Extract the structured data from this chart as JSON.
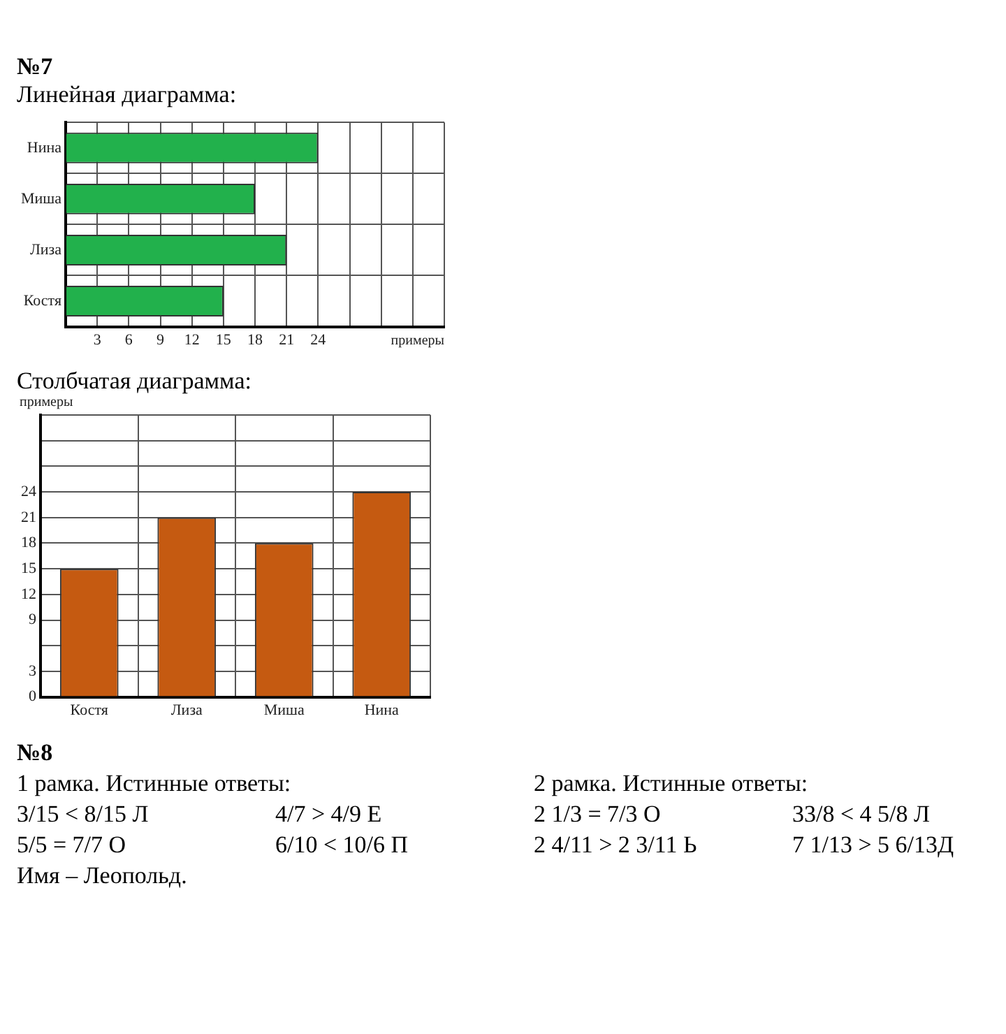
{
  "chart_data": [
    {
      "type": "bar",
      "title": "Линейная диаграмма:",
      "annotations": [
        "№7"
      ],
      "orientation": "horizontal",
      "categories": [
        "Нина",
        "Миша",
        "Лиза",
        "Костя"
      ],
      "values": [
        24,
        18,
        21,
        15
      ],
      "color": "#22b14c",
      "xlabel": "примеры",
      "xlim": [
        0,
        36
      ],
      "xticks": [
        {
          "value": 0,
          "label": null
        },
        3,
        6,
        9,
        12,
        15,
        18,
        21,
        24,
        {
          "value": 27,
          "label": null
        },
        {
          "value": 30,
          "label": null
        },
        {
          "value": 33,
          "label": null
        },
        {
          "value": 36,
          "label": null
        }
      ],
      "grid": true
    },
    {
      "type": "bar",
      "title": "Столбчатая диаграмма:",
      "categories": [
        "Костя",
        "Лиза",
        "Миша",
        "Нина"
      ],
      "values": [
        15,
        21,
        18,
        24
      ],
      "color": "#c55a11",
      "ylabel": "примеры",
      "ylim": [
        0,
        33
      ],
      "yticks": [
        0,
        3,
        {
          "value": 6,
          "label": null
        },
        9,
        12,
        15,
        18,
        21,
        24,
        {
          "value": 27,
          "label": null
        },
        {
          "value": 30,
          "label": null
        },
        {
          "value": 33,
          "label": null
        }
      ],
      "grid": true
    },
    {
      "type": "other",
      "title": "№8",
      "annotations": [
        "1 рамка. Истинные ответы:",
        "2 рамка. Истинные ответы:",
        "3/15 < 8/15 Л",
        "4/7 > 4/9 Е",
        "2 1/3 = 7/3 О",
        "33/8 < 4 5/8 Л",
        "5/5 = 7/7 О",
        "6/10 < 10/6 П",
        "2 4/11 > 2 3/11 Ь",
        "7 1/13 > 5 6/13Д",
        "Имя – Леопольд."
      ]
    }
  ]
}
